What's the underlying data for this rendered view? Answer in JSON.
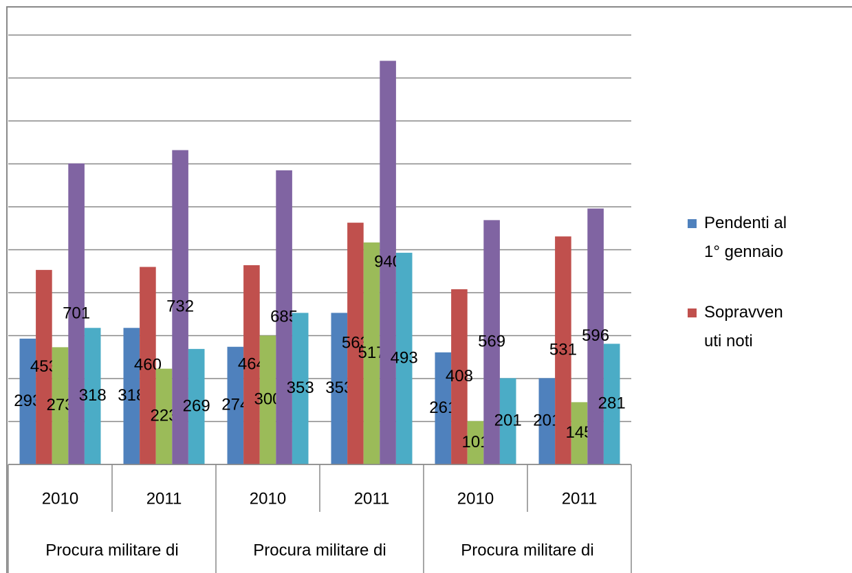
{
  "chart_data": {
    "type": "bar",
    "categories": [
      "2010",
      "2011",
      "2010",
      "2011",
      "2010",
      "2011"
    ],
    "groups": [
      "Procura militare di",
      "Procura militare di",
      "Procura militare di"
    ],
    "series": [
      {
        "name": "Pendenti al 1° gennaio",
        "color": "#4f81bd",
        "values": [
          293,
          318,
          274,
          353,
          261,
          201
        ]
      },
      {
        "name": "Sopravvenuti noti",
        "color": "#c0504d",
        "values": [
          453,
          460,
          464,
          563,
          408,
          531
        ]
      },
      {
        "color": "#9bbb59",
        "values": [
          273,
          223,
          300,
          517,
          101,
          145
        ]
      },
      {
        "color": "#8064a2",
        "values": [
          701,
          732,
          685,
          940,
          569,
          596
        ]
      },
      {
        "color": "#4bacc6",
        "values": [
          318,
          269,
          353,
          493,
          201,
          281
        ]
      }
    ],
    "ylim": [
      0,
      1000
    ],
    "yticks": [
      0,
      100,
      200,
      300,
      400,
      500,
      600,
      700,
      800,
      900,
      1000
    ],
    "grid": true
  }
}
